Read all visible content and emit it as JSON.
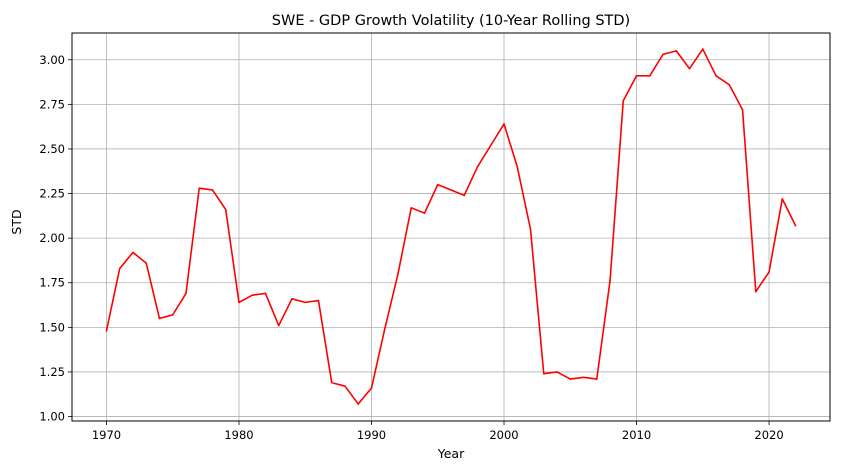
{
  "chart_data": {
    "type": "line",
    "title": "SWE - GDP Growth Volatility (10-Year Rolling STD)",
    "xlabel": "Year",
    "ylabel": "STD",
    "xlim": [
      1967.4,
      2024.6
    ],
    "ylim": [
      0.975,
      3.15
    ],
    "xticks": [
      1970,
      1980,
      1990,
      2000,
      2010,
      2020
    ],
    "yticks": [
      "1.00",
      "1.25",
      "1.50",
      "1.75",
      "2.00",
      "2.25",
      "2.50",
      "2.75",
      "3.00"
    ],
    "grid": true,
    "series": [
      {
        "color": "#ff0000",
        "x": [
          1970,
          1971,
          1972,
          1973,
          1974,
          1975,
          1976,
          1977,
          1978,
          1979,
          1980,
          1981,
          1982,
          1983,
          1984,
          1985,
          1986,
          1987,
          1988,
          1989,
          1990,
          1991,
          1992,
          1993,
          1994,
          1995,
          1996,
          1997,
          1998,
          1999,
          2000,
          2001,
          2002,
          2003,
          2004,
          2005,
          2006,
          2007,
          2008,
          2009,
          2010,
          2011,
          2012,
          2013,
          2014,
          2015,
          2016,
          2017,
          2018,
          2019,
          2020,
          2021,
          2022
        ],
        "y": [
          1.48,
          1.83,
          1.92,
          1.86,
          1.55,
          1.57,
          1.69,
          2.28,
          2.27,
          2.16,
          1.64,
          1.68,
          1.69,
          1.51,
          1.66,
          1.64,
          1.65,
          1.19,
          1.17,
          1.07,
          1.16,
          1.49,
          1.8,
          2.17,
          2.14,
          2.3,
          2.27,
          2.24,
          2.4,
          2.52,
          2.64,
          2.4,
          2.05,
          1.24,
          1.25,
          1.21,
          1.22,
          1.21,
          1.76,
          2.77,
          2.91,
          2.91,
          3.03,
          3.05,
          2.95,
          3.06,
          2.91,
          2.86,
          2.72,
          1.7,
          1.81,
          2.22,
          2.07
        ]
      }
    ]
  }
}
